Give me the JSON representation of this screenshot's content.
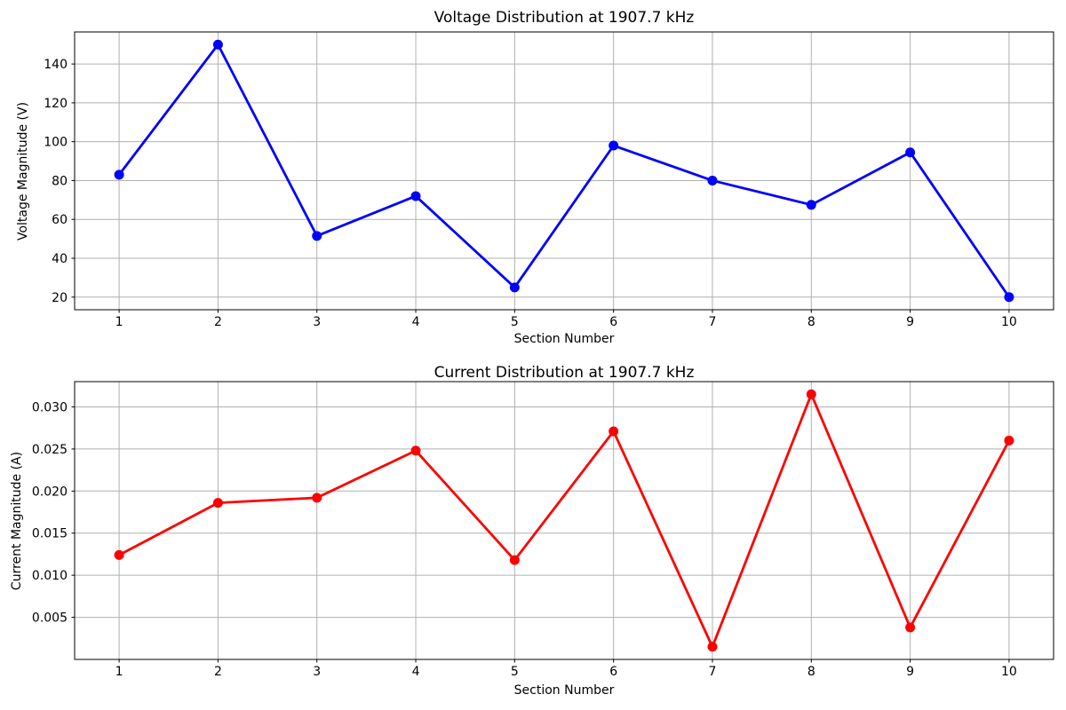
{
  "figure": {
    "background": "#ffffff",
    "grid_color": "#b0b0b0",
    "spine_color": "#000000",
    "text_color": "#000000"
  },
  "chart_data": [
    {
      "type": "line",
      "title": "Voltage Distribution at 1907.7 kHz",
      "xlabel": "Section Number",
      "ylabel": "Voltage Magnitude (V)",
      "color": "#0000ff",
      "marker": "circle",
      "grid": true,
      "legend": null,
      "x": [
        1,
        2,
        3,
        4,
        5,
        6,
        7,
        8,
        9,
        10
      ],
      "y": [
        83,
        150,
        51.5,
        72,
        25,
        98,
        80,
        67.5,
        94.5,
        20
      ],
      "xlim": [
        0.55,
        10.45
      ],
      "ylim": [
        13.5,
        156.5
      ],
      "xticks": [
        1,
        2,
        3,
        4,
        5,
        6,
        7,
        8,
        9,
        10
      ],
      "xtick_labels": [
        "1",
        "2",
        "3",
        "4",
        "5",
        "6",
        "7",
        "8",
        "9",
        "10"
      ],
      "yticks": [
        20,
        40,
        60,
        80,
        100,
        120,
        140
      ],
      "ytick_labels": [
        "20",
        "40",
        "60",
        "80",
        "100",
        "120",
        "140"
      ]
    },
    {
      "type": "line",
      "title": "Current Distribution at 1907.7 kHz",
      "xlabel": "Section Number",
      "ylabel": "Current Magnitude (A)",
      "color": "#ff0000",
      "marker": "circle",
      "grid": true,
      "legend": null,
      "x": [
        1,
        2,
        3,
        4,
        5,
        6,
        7,
        8,
        9,
        10
      ],
      "y": [
        0.0124,
        0.0186,
        0.0192,
        0.0248,
        0.0118,
        0.0271,
        0.0015,
        0.0315,
        0.0038,
        0.026
      ],
      "xlim": [
        0.55,
        10.45
      ],
      "ylim": [
        0.0,
        0.033
      ],
      "xticks": [
        1,
        2,
        3,
        4,
        5,
        6,
        7,
        8,
        9,
        10
      ],
      "xtick_labels": [
        "1",
        "2",
        "3",
        "4",
        "5",
        "6",
        "7",
        "8",
        "9",
        "10"
      ],
      "yticks": [
        0.005,
        0.01,
        0.015,
        0.02,
        0.025,
        0.03
      ],
      "ytick_labels": [
        "0.005",
        "0.010",
        "0.015",
        "0.020",
        "0.025",
        "0.030"
      ]
    }
  ]
}
